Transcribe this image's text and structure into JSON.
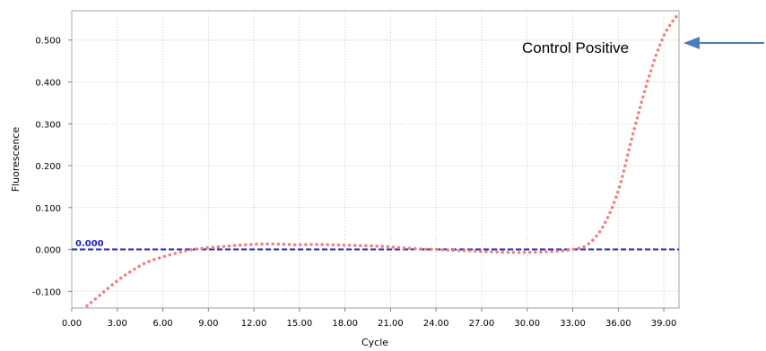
{
  "chart_data": {
    "type": "line",
    "xlabel": "Cycle",
    "ylabel": "Fluorescence",
    "xlim": [
      0,
      40
    ],
    "ylim": [
      -0.14,
      0.57
    ],
    "x_ticks": [
      "0.00",
      "3.00",
      "6.00",
      "9.00",
      "12.00",
      "15.00",
      "18.00",
      "21.00",
      "24.00",
      "27.00",
      "30.00",
      "33.00",
      "36.00",
      "39.00"
    ],
    "x_tick_values": [
      0,
      3,
      6,
      9,
      12,
      15,
      18,
      21,
      24,
      27,
      30,
      33,
      36,
      39
    ],
    "y_ticks": [
      "-0.100",
      "0.000",
      "0.100",
      "0.200",
      "0.300",
      "0.400",
      "0.500"
    ],
    "y_tick_values": [
      -0.1,
      0.0,
      0.1,
      0.2,
      0.3,
      0.4,
      0.5
    ],
    "grid": true,
    "series": [
      {
        "color": "#f08080",
        "style": "dotted",
        "x": [
          1,
          2,
          3,
          4,
          5,
          6,
          7,
          8,
          9,
          10,
          11,
          12,
          13,
          14,
          15,
          16,
          17,
          18,
          19,
          20,
          21,
          22,
          23,
          24,
          25,
          26,
          27,
          28,
          29,
          30,
          31,
          32,
          33,
          34,
          35,
          36,
          37,
          38,
          39,
          40
        ],
        "y": [
          -0.135,
          -0.105,
          -0.075,
          -0.05,
          -0.03,
          -0.018,
          -0.008,
          0.0,
          0.004,
          0.007,
          0.01,
          0.012,
          0.013,
          0.012,
          0.011,
          0.012,
          0.011,
          0.01,
          0.009,
          0.008,
          0.006,
          0.003,
          0.001,
          0.0,
          -0.002,
          -0.003,
          -0.005,
          -0.006,
          -0.007,
          -0.007,
          -0.006,
          -0.004,
          0.0,
          0.012,
          0.055,
          0.14,
          0.28,
          0.41,
          0.51,
          0.565
        ]
      }
    ],
    "threshold": {
      "value": 0.0,
      "label": "0.000",
      "color": "#2020c8"
    },
    "annotation": {
      "text": "Control Positive",
      "arrow_color": "#4a7ebb"
    }
  }
}
